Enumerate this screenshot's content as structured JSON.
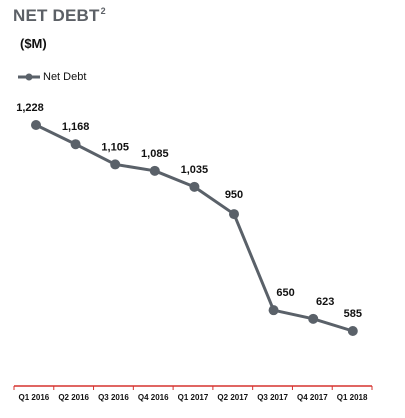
{
  "title": "NET DEBT",
  "title_superscript": "2",
  "unit_label": "($M)",
  "colors": {
    "line": "#5a6169",
    "axis": "#d6322e",
    "text": "#111111",
    "title": "#5c6066"
  },
  "chart_data": {
    "type": "line",
    "title": "NET DEBT",
    "ylabel": "($M)",
    "categories": [
      "Q1 2016",
      "Q2 2016",
      "Q3 2016",
      "Q4 2016",
      "Q1 2017",
      "Q2 2017",
      "Q3 2017",
      "Q4 2017",
      "Q1 2018"
    ],
    "series": [
      {
        "name": "Net Debt",
        "values": [
          1228,
          1168,
          1105,
          1085,
          1035,
          950,
          650,
          623,
          585
        ],
        "labels": [
          "1,228",
          "1,168",
          "1,105",
          "1,085",
          "1,035",
          "950",
          "650",
          "623",
          "585"
        ]
      }
    ],
    "grid": false,
    "legend": "top-left"
  }
}
